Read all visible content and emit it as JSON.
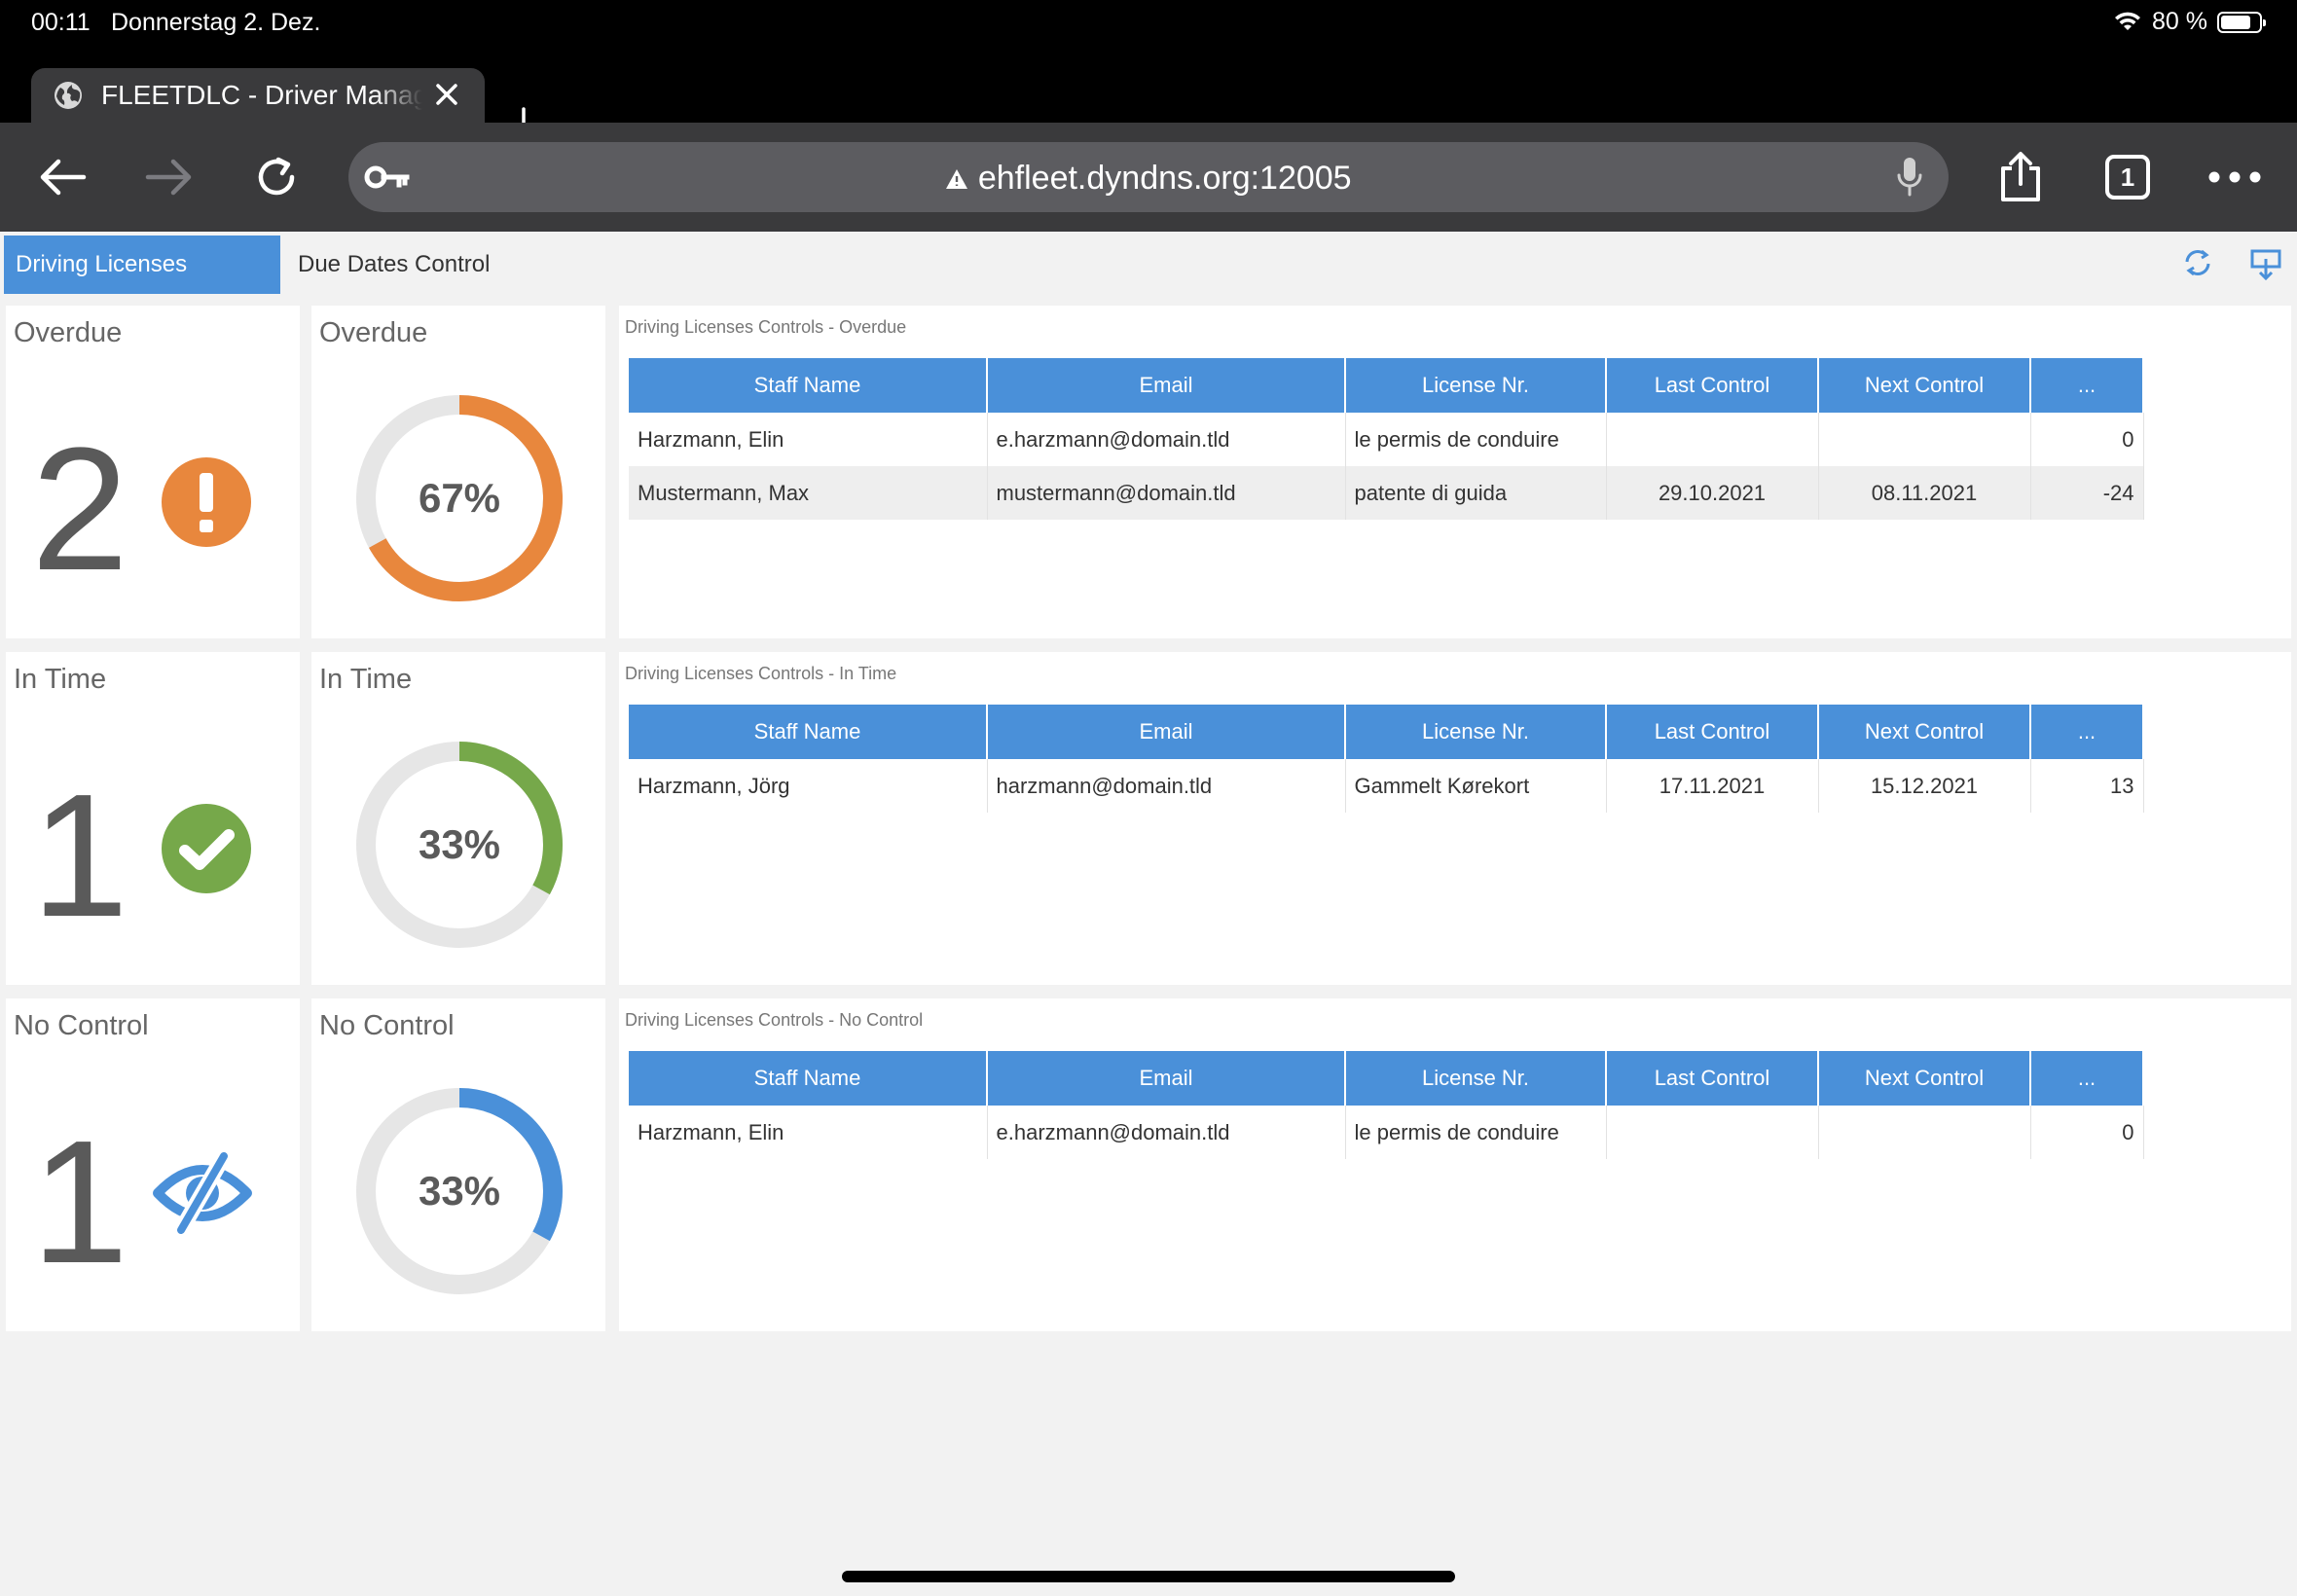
{
  "status_bar": {
    "time": "00:11",
    "date": "Donnerstag 2. Dez.",
    "battery": "80 %",
    "battery_fraction": 0.8
  },
  "browser": {
    "tab_title": "FLEETDLC - Driver Management",
    "url": "ehfleet.dyndns.org:12005",
    "tab_count": "1"
  },
  "app": {
    "tabs": [
      {
        "label": "Driving Licenses Control"
      },
      {
        "label": "Due Dates Control"
      }
    ]
  },
  "sections": {
    "overdue": {
      "kpi_title": "Overdue",
      "count": "2",
      "donut_title": "Overdue",
      "percent_label": "67%",
      "percent": 0.67,
      "color": "#e8873d",
      "grid_title": "Driving Licenses Controls - Overdue",
      "rows": [
        {
          "staff": "Harzmann, Elin",
          "email": "e.harzmann@domain.tld",
          "license": "le permis de conduire",
          "last": "",
          "next": "",
          "days": "0"
        },
        {
          "staff": "Mustermann, Max",
          "email": "mustermann@domain.tld",
          "license": "patente di guida",
          "last": "29.10.2021",
          "next": "08.11.2021",
          "days": "-24"
        }
      ]
    },
    "intime": {
      "kpi_title": "In Time",
      "count": "1",
      "donut_title": "In Time",
      "percent_label": "33%",
      "percent": 0.33,
      "color": "#76a84a",
      "grid_title": "Driving Licenses Controls - In Time",
      "rows": [
        {
          "staff": "Harzmann, Jörg",
          "email": "harzmann@domain.tld",
          "license": "Gammelt Kørekort",
          "last": "17.11.2021",
          "next": "15.12.2021",
          "days": "13"
        }
      ]
    },
    "nocontrol": {
      "kpi_title": "No Control",
      "count": "1",
      "donut_title": "No Control",
      "percent_label": "33%",
      "percent": 0.33,
      "color": "#4a90d9",
      "grid_title": "Driving Licenses Controls - No Control",
      "rows": [
        {
          "staff": "Harzmann, Elin",
          "email": "e.harzmann@domain.tld",
          "license": "le permis de conduire",
          "last": "",
          "next": "",
          "days": "0"
        }
      ]
    }
  },
  "columns": [
    "Staff Name",
    "Email",
    "License Nr.",
    "Last Control",
    "Next Control",
    "..."
  ],
  "icons": {
    "overdue": "exclamation-circle-icon",
    "intime": "check-circle-icon",
    "nocontrol": "eye-slash-icon",
    "refresh": "refresh-icon",
    "export": "export-icon"
  }
}
